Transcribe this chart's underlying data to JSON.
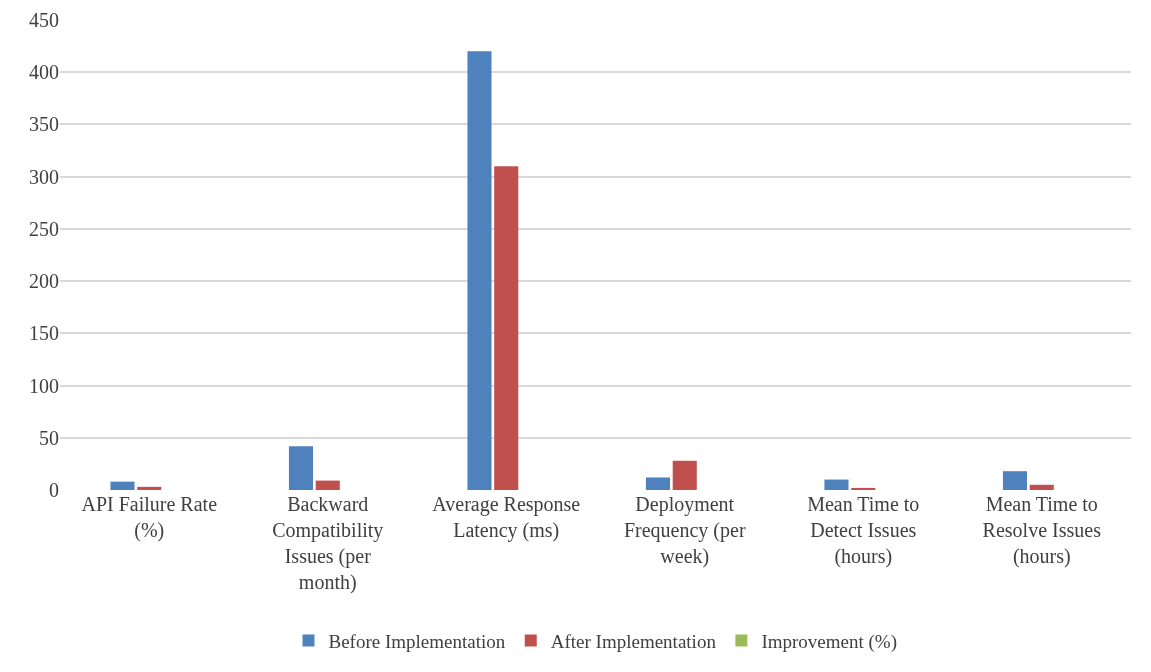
{
  "chart_data": {
    "type": "bar",
    "categories": [
      "API Failure Rate (%)",
      "Backward Compatibility Issues (per month)",
      "Average Response Latency (ms)",
      "Deployment Frequency (per week)",
      "Mean Time to Detect Issues (hours)",
      "Mean Time to Resolve Issues (hours)"
    ],
    "series": [
      {
        "name": "Before Implementation",
        "color": "#4f81bd",
        "values": [
          8,
          42,
          420,
          12,
          10,
          18
        ]
      },
      {
        "name": "After Implementation",
        "color": "#c0504d",
        "values": [
          3,
          9,
          310,
          28,
          2,
          5
        ]
      },
      {
        "name": "Improvement (%)",
        "color": "#9bbb59",
        "values": [
          null,
          null,
          null,
          null,
          null,
          null
        ]
      }
    ],
    "ylim": [
      0,
      450
    ],
    "yticks": [
      0,
      50,
      100,
      150,
      200,
      250,
      300,
      350,
      400,
      450
    ],
    "grid": "y",
    "legend": "bottom"
  }
}
